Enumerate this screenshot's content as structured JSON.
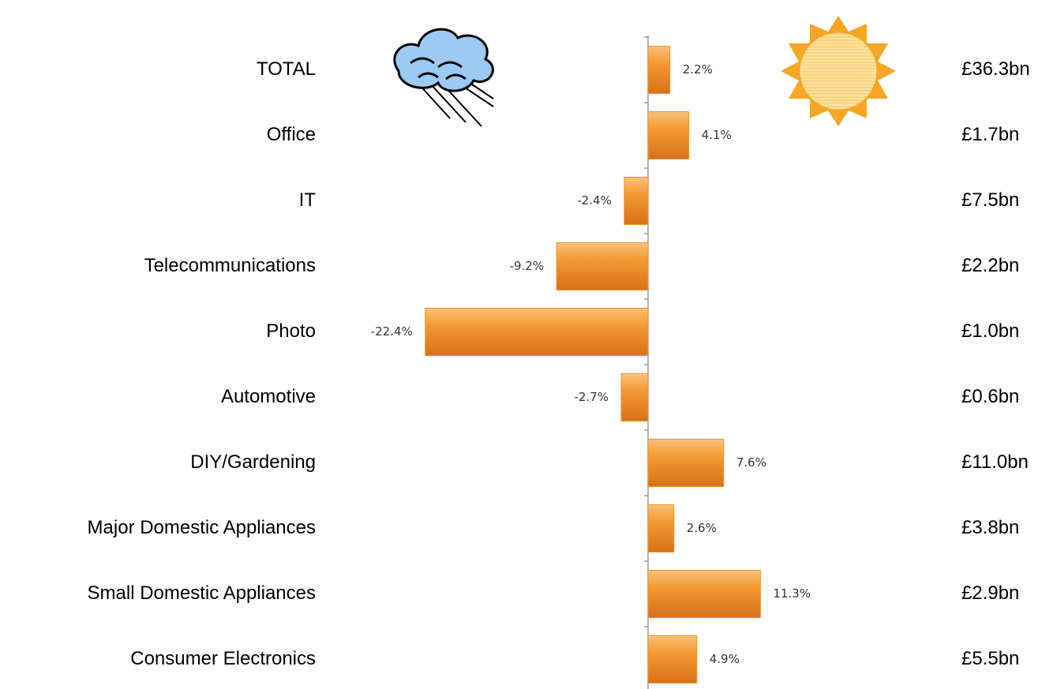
{
  "chart_data": {
    "type": "bar",
    "orientation": "horizontal",
    "categories": [
      "TOTAL",
      "Office",
      "IT",
      "Telecommunications",
      "Photo",
      "Automotive",
      "DIY/Gardening",
      "Major Domestic Appliances",
      "Small Domestic Appliances",
      "Consumer Electronics"
    ],
    "values": [
      2.2,
      4.1,
      -2.4,
      -9.2,
      -22.4,
      -2.7,
      7.6,
      2.6,
      11.3,
      4.9
    ],
    "value_labels": [
      "2.2%",
      "4.1%",
      "-2.4%",
      "-9.2%",
      "-22.4%",
      "-2.7%",
      "7.6%",
      "2.6%",
      "11.3%",
      "4.9%"
    ],
    "sizes": [
      "£36.3bn",
      "£1.7bn",
      "£7.5bn",
      "£2.2bn",
      "£1.0bn",
      "£0.6bn",
      "£11.0bn",
      "£3.8bn",
      "£2.9bn",
      "£5.5bn"
    ],
    "color": "#f0922e",
    "xlim": [
      -25,
      15
    ]
  }
}
